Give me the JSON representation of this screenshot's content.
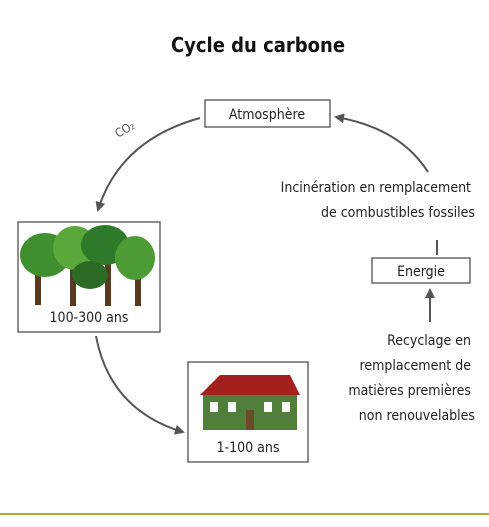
{
  "title": "Cycle du carbone",
  "co2_label": "CO₂",
  "nodes": [
    {
      "label": "Atmosphère"
    },
    {
      "label": "100-300 ans"
    },
    {
      "label": "1-100 ans"
    },
    {
      "label": "Energie"
    }
  ],
  "annotations": {
    "incineration": [
      "Incinération en remplacement",
      "de combustibles fossiles"
    ],
    "recyclage": [
      "Recyclage en",
      "remplacement de",
      "matières premières",
      "non renouvelables"
    ]
  }
}
